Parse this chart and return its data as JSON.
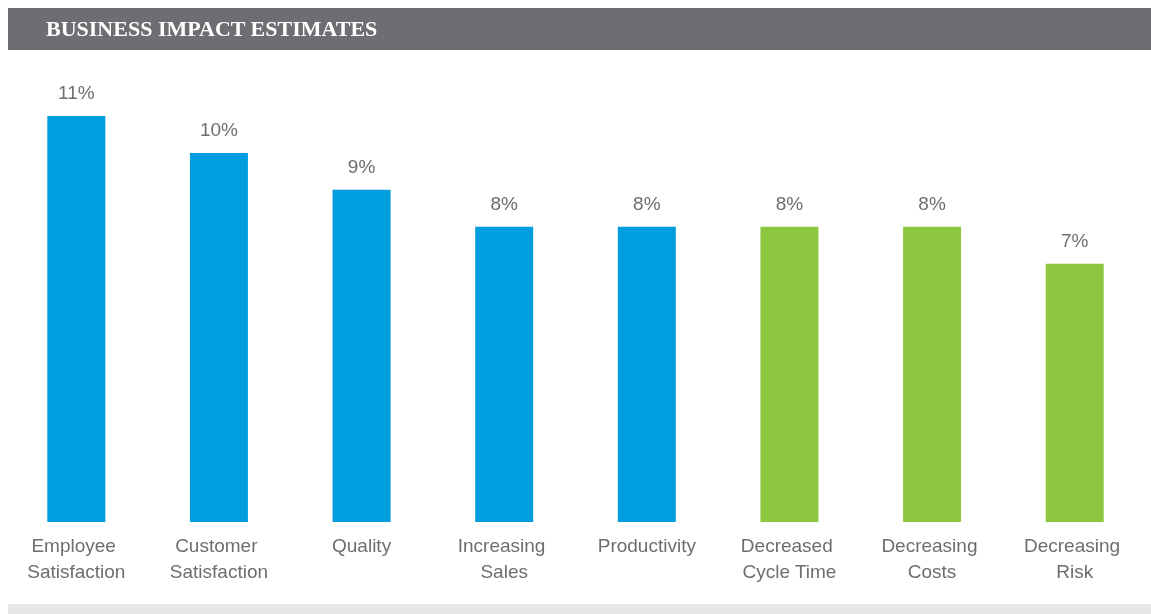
{
  "chart_data": {
    "type": "bar",
    "title": "BUSINESS IMPACT ESTIMATES",
    "categories": [
      "Employee Satisfaction",
      "Customer Satisfaction",
      "Quality",
      "Increasing Sales",
      "Productivity",
      "Decreased Cycle Time",
      "Decreasing Costs",
      "Decreasing Risk"
    ],
    "values": [
      11,
      10,
      9,
      8,
      8,
      8,
      8,
      7
    ],
    "value_labels": [
      "11%",
      "10%",
      "9%",
      "8%",
      "8%",
      "8%",
      "8%",
      "7%"
    ],
    "colors": [
      "#009ddf",
      "#009ddf",
      "#009ddf",
      "#009ddf",
      "#009ddf",
      "#8dc63f",
      "#8dc63f",
      "#8dc63f"
    ],
    "grid": false
  }
}
